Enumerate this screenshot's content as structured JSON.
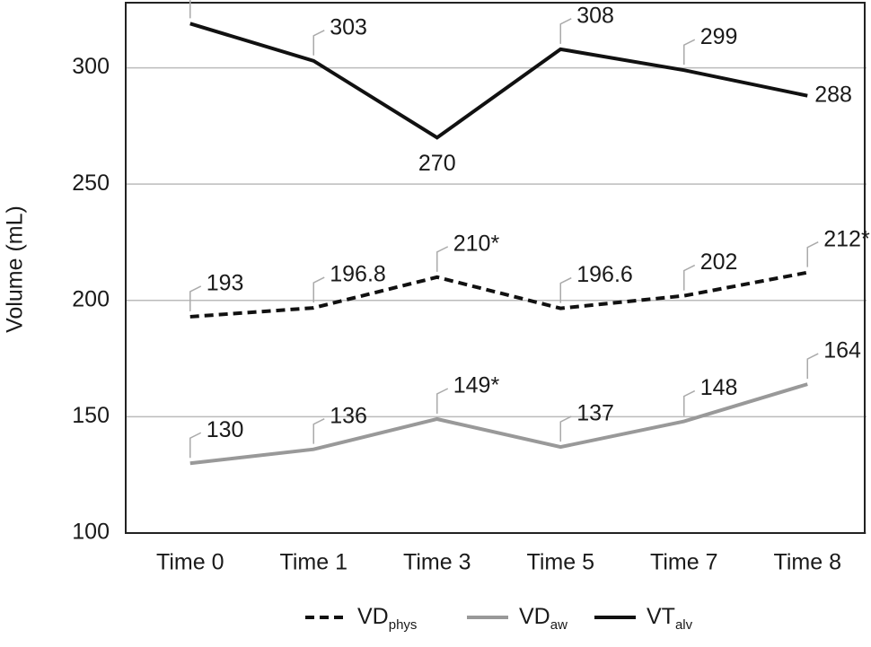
{
  "chart_data": {
    "type": "line",
    "y_label": "Volume (mL)",
    "categories": [
      "Time 0",
      "Time 1",
      "Time 3",
      "Time 5",
      "Time 7",
      "Time 8"
    ],
    "series": [
      {
        "name": "VDphys",
        "color": "#111111",
        "style": "dashed",
        "values": [
          193,
          196.8,
          210,
          196.6,
          202,
          212
        ],
        "value_labels": [
          "193",
          "196.8",
          "210*",
          "196.6",
          "202",
          "212*"
        ]
      },
      {
        "name": "VDaw",
        "color": "#999999",
        "style": "solid",
        "values": [
          130,
          136,
          149,
          137,
          148,
          164
        ],
        "value_labels": [
          "130",
          "136",
          "149*",
          "137",
          "148",
          "164"
        ]
      },
      {
        "name": "VTalv",
        "color": "#111111",
        "style": "solid",
        "values": [
          319,
          303,
          270,
          308,
          299,
          288
        ]
      }
    ],
    "ylim": [
      100,
      328
    ],
    "yticks": [
      100,
      150,
      200,
      250,
      300
    ],
    "grid": true
  }
}
